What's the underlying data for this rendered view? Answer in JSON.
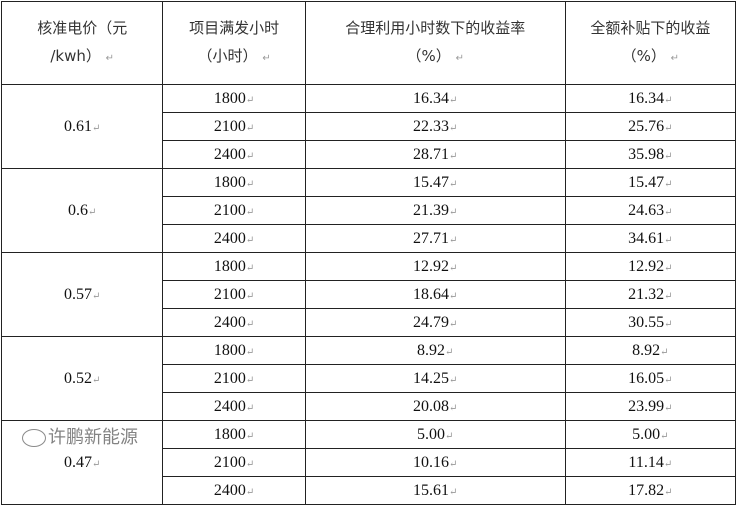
{
  "headers": [
    {
      "l1": "核准电价（元",
      "l2": "/kwh）"
    },
    {
      "l1": "项目满发小时",
      "l2": "（小时）"
    },
    {
      "l1": "合理利用小时数下的收益率",
      "l2": "（%）"
    },
    {
      "l1": "全额补贴下的收益",
      "l2": "（%）"
    }
  ],
  "groups": [
    {
      "price": "0.61",
      "rows": [
        [
          "1800",
          "16.34",
          "16.34"
        ],
        [
          "2100",
          "22.33",
          "25.76"
        ],
        [
          "2400",
          "28.71",
          "35.98"
        ]
      ]
    },
    {
      "price": "0.6",
      "rows": [
        [
          "1800",
          "15.47",
          "15.47"
        ],
        [
          "2100",
          "21.39",
          "24.63"
        ],
        [
          "2400",
          "27.71",
          "34.61"
        ]
      ]
    },
    {
      "price": "0.57",
      "rows": [
        [
          "1800",
          "12.92",
          "12.92"
        ],
        [
          "2100",
          "18.64",
          "21.32"
        ],
        [
          "2400",
          "24.79",
          "30.55"
        ]
      ]
    },
    {
      "price": "0.52",
      "rows": [
        [
          "1800",
          "8.92",
          "8.92"
        ],
        [
          "2100",
          "14.25",
          "16.05"
        ],
        [
          "2400",
          "20.08",
          "23.99"
        ]
      ]
    },
    {
      "price": "0.47",
      "rows": [
        [
          "1800",
          "5.00",
          "5.00"
        ],
        [
          "2100",
          "10.16",
          "11.14"
        ],
        [
          "2400",
          "15.61",
          "17.82"
        ]
      ]
    }
  ],
  "paragraph_mark": "↵",
  "watermark": {
    "text": "许鹏新能源",
    "icon": "wechat-icon"
  }
}
